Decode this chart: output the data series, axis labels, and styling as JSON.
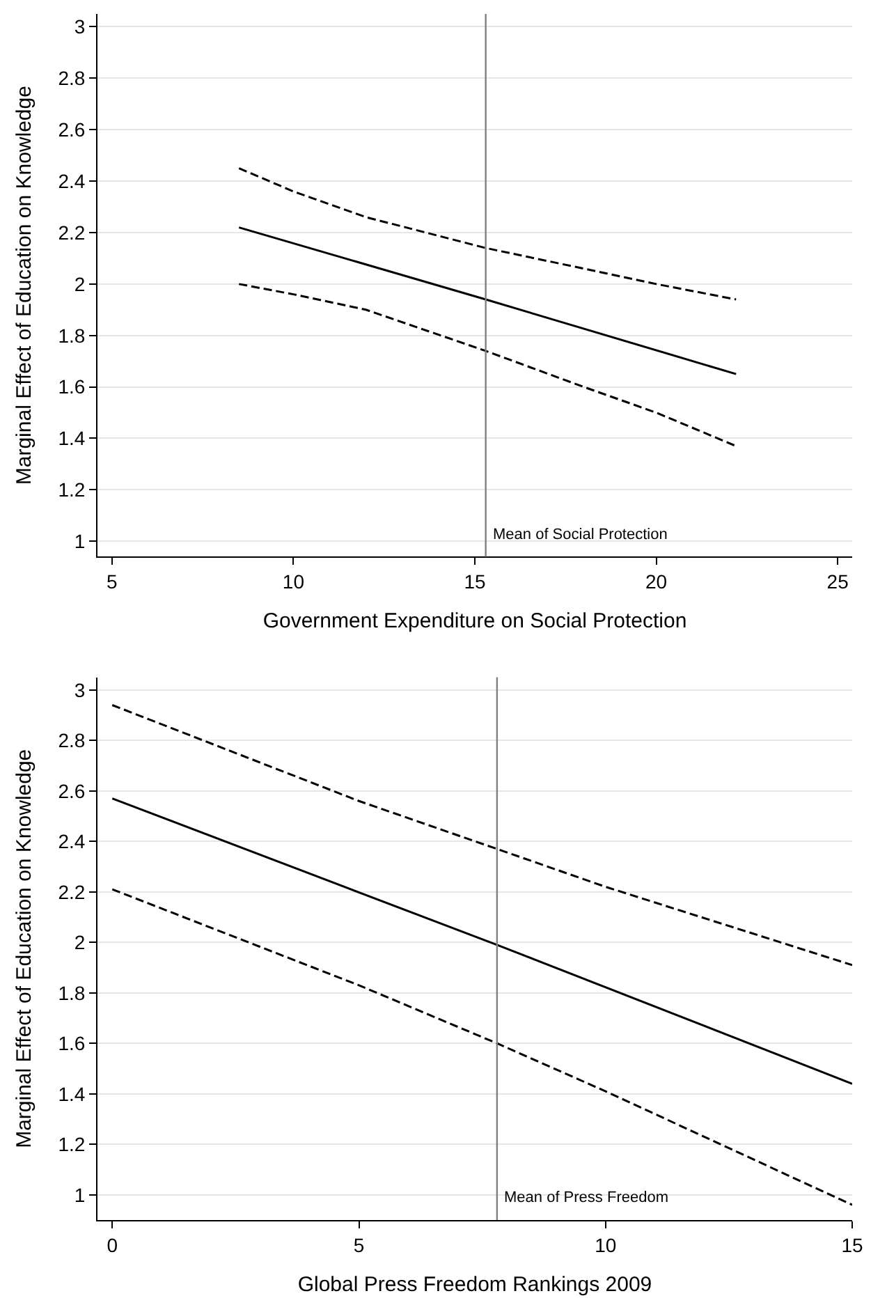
{
  "chart_data": [
    {
      "type": "line",
      "xlabel": "Government Expenditure on Social Protection",
      "ylabel": "Marginal Effect of Education on Knowledge",
      "xlim": [
        4.6,
        25.4
      ],
      "xticks": [
        5,
        10,
        15,
        20,
        25
      ],
      "ylim": [
        0.94,
        3.05
      ],
      "yticks": [
        1,
        1.2,
        1.4,
        1.6,
        1.8,
        2,
        2.2,
        2.4,
        2.6,
        2.8,
        3
      ],
      "grid": "y",
      "series": [
        {
          "color": "#000000",
          "line_style": "solid",
          "x": [
            8.5,
            15.3,
            22.2
          ],
          "values": [
            2.22,
            1.94,
            1.65
          ]
        },
        {
          "color": "#000000",
          "line_style": "dashed",
          "x": [
            8.5,
            10,
            12,
            15.3,
            18,
            20,
            22.2
          ],
          "values": [
            2.45,
            2.36,
            2.26,
            2.14,
            2.06,
            2.0,
            1.94
          ]
        },
        {
          "color": "#000000",
          "line_style": "dashed",
          "x": [
            8.5,
            10,
            12,
            15.3,
            18,
            20,
            22.2
          ],
          "values": [
            2.0,
            1.96,
            1.9,
            1.74,
            1.6,
            1.5,
            1.37
          ]
        }
      ],
      "ref_lines": [
        {
          "axis": "x",
          "value": 15.3,
          "label": "Mean of Social Protection",
          "color": "#808080"
        }
      ]
    },
    {
      "type": "line",
      "xlabel": "Global Press Freedom Rankings 2009",
      "ylabel": "Marginal Effect of Education on Knowledge",
      "xlim": [
        -0.3,
        15
      ],
      "xticks": [
        0,
        5,
        10,
        15
      ],
      "ylim": [
        0.9,
        3.05
      ],
      "yticks": [
        1,
        1.2,
        1.4,
        1.6,
        1.8,
        2,
        2.2,
        2.4,
        2.6,
        2.8,
        3
      ],
      "grid": "y",
      "series": [
        {
          "color": "#000000",
          "line_style": "solid",
          "x": [
            0,
            7.8,
            15
          ],
          "values": [
            2.57,
            1.99,
            1.44
          ]
        },
        {
          "color": "#000000",
          "line_style": "dashed",
          "x": [
            0,
            5,
            7.8,
            10,
            15
          ],
          "values": [
            2.94,
            2.56,
            2.37,
            2.22,
            1.91
          ]
        },
        {
          "color": "#000000",
          "line_style": "dashed",
          "x": [
            0,
            5,
            7.8,
            10,
            15
          ],
          "values": [
            2.21,
            1.83,
            1.6,
            1.41,
            0.96
          ]
        }
      ],
      "ref_lines": [
        {
          "axis": "x",
          "value": 7.8,
          "label": "Mean of Press Freedom",
          "color": "#808080"
        }
      ]
    }
  ]
}
